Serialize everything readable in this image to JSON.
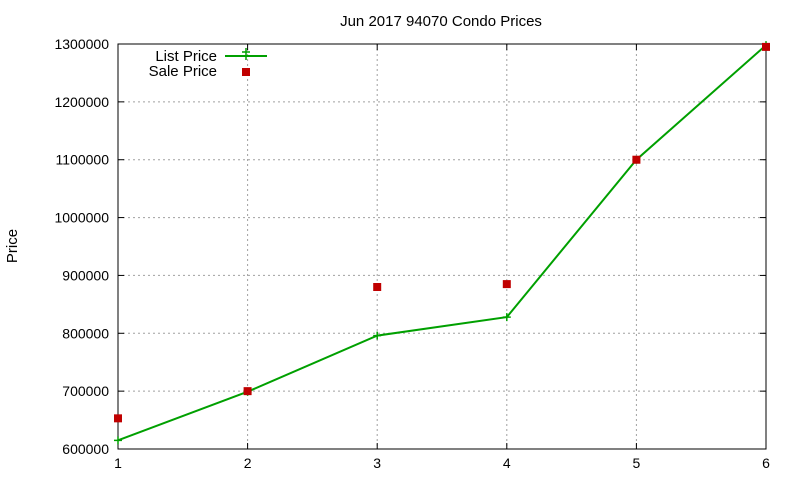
{
  "chart_data": {
    "type": "line",
    "title": "Jun 2017 94070 Condo Prices",
    "xlabel": "",
    "ylabel": "Price",
    "xlim": [
      1,
      6
    ],
    "ylim": [
      600000,
      1300000
    ],
    "x_ticks": [
      "1",
      "2",
      "3",
      "4",
      "5",
      "6"
    ],
    "y_ticks": [
      "600000",
      "700000",
      "800000",
      "900000",
      "1000000",
      "1100000",
      "1200000",
      "1300000"
    ],
    "grid": true,
    "legend_position": "top-left",
    "x": [
      1,
      2,
      3,
      4,
      5,
      6
    ],
    "series": [
      {
        "name": "List Price",
        "kind": "line-with-plus-markers",
        "color": "#00a000",
        "values": [
          615000,
          699000,
          796000,
          828000,
          1100000,
          1298000
        ]
      },
      {
        "name": "Sale Price",
        "kind": "square-points",
        "color": "#c00000",
        "values": [
          653000,
          700000,
          880000,
          885000,
          1100000,
          1295000
        ]
      }
    ]
  }
}
